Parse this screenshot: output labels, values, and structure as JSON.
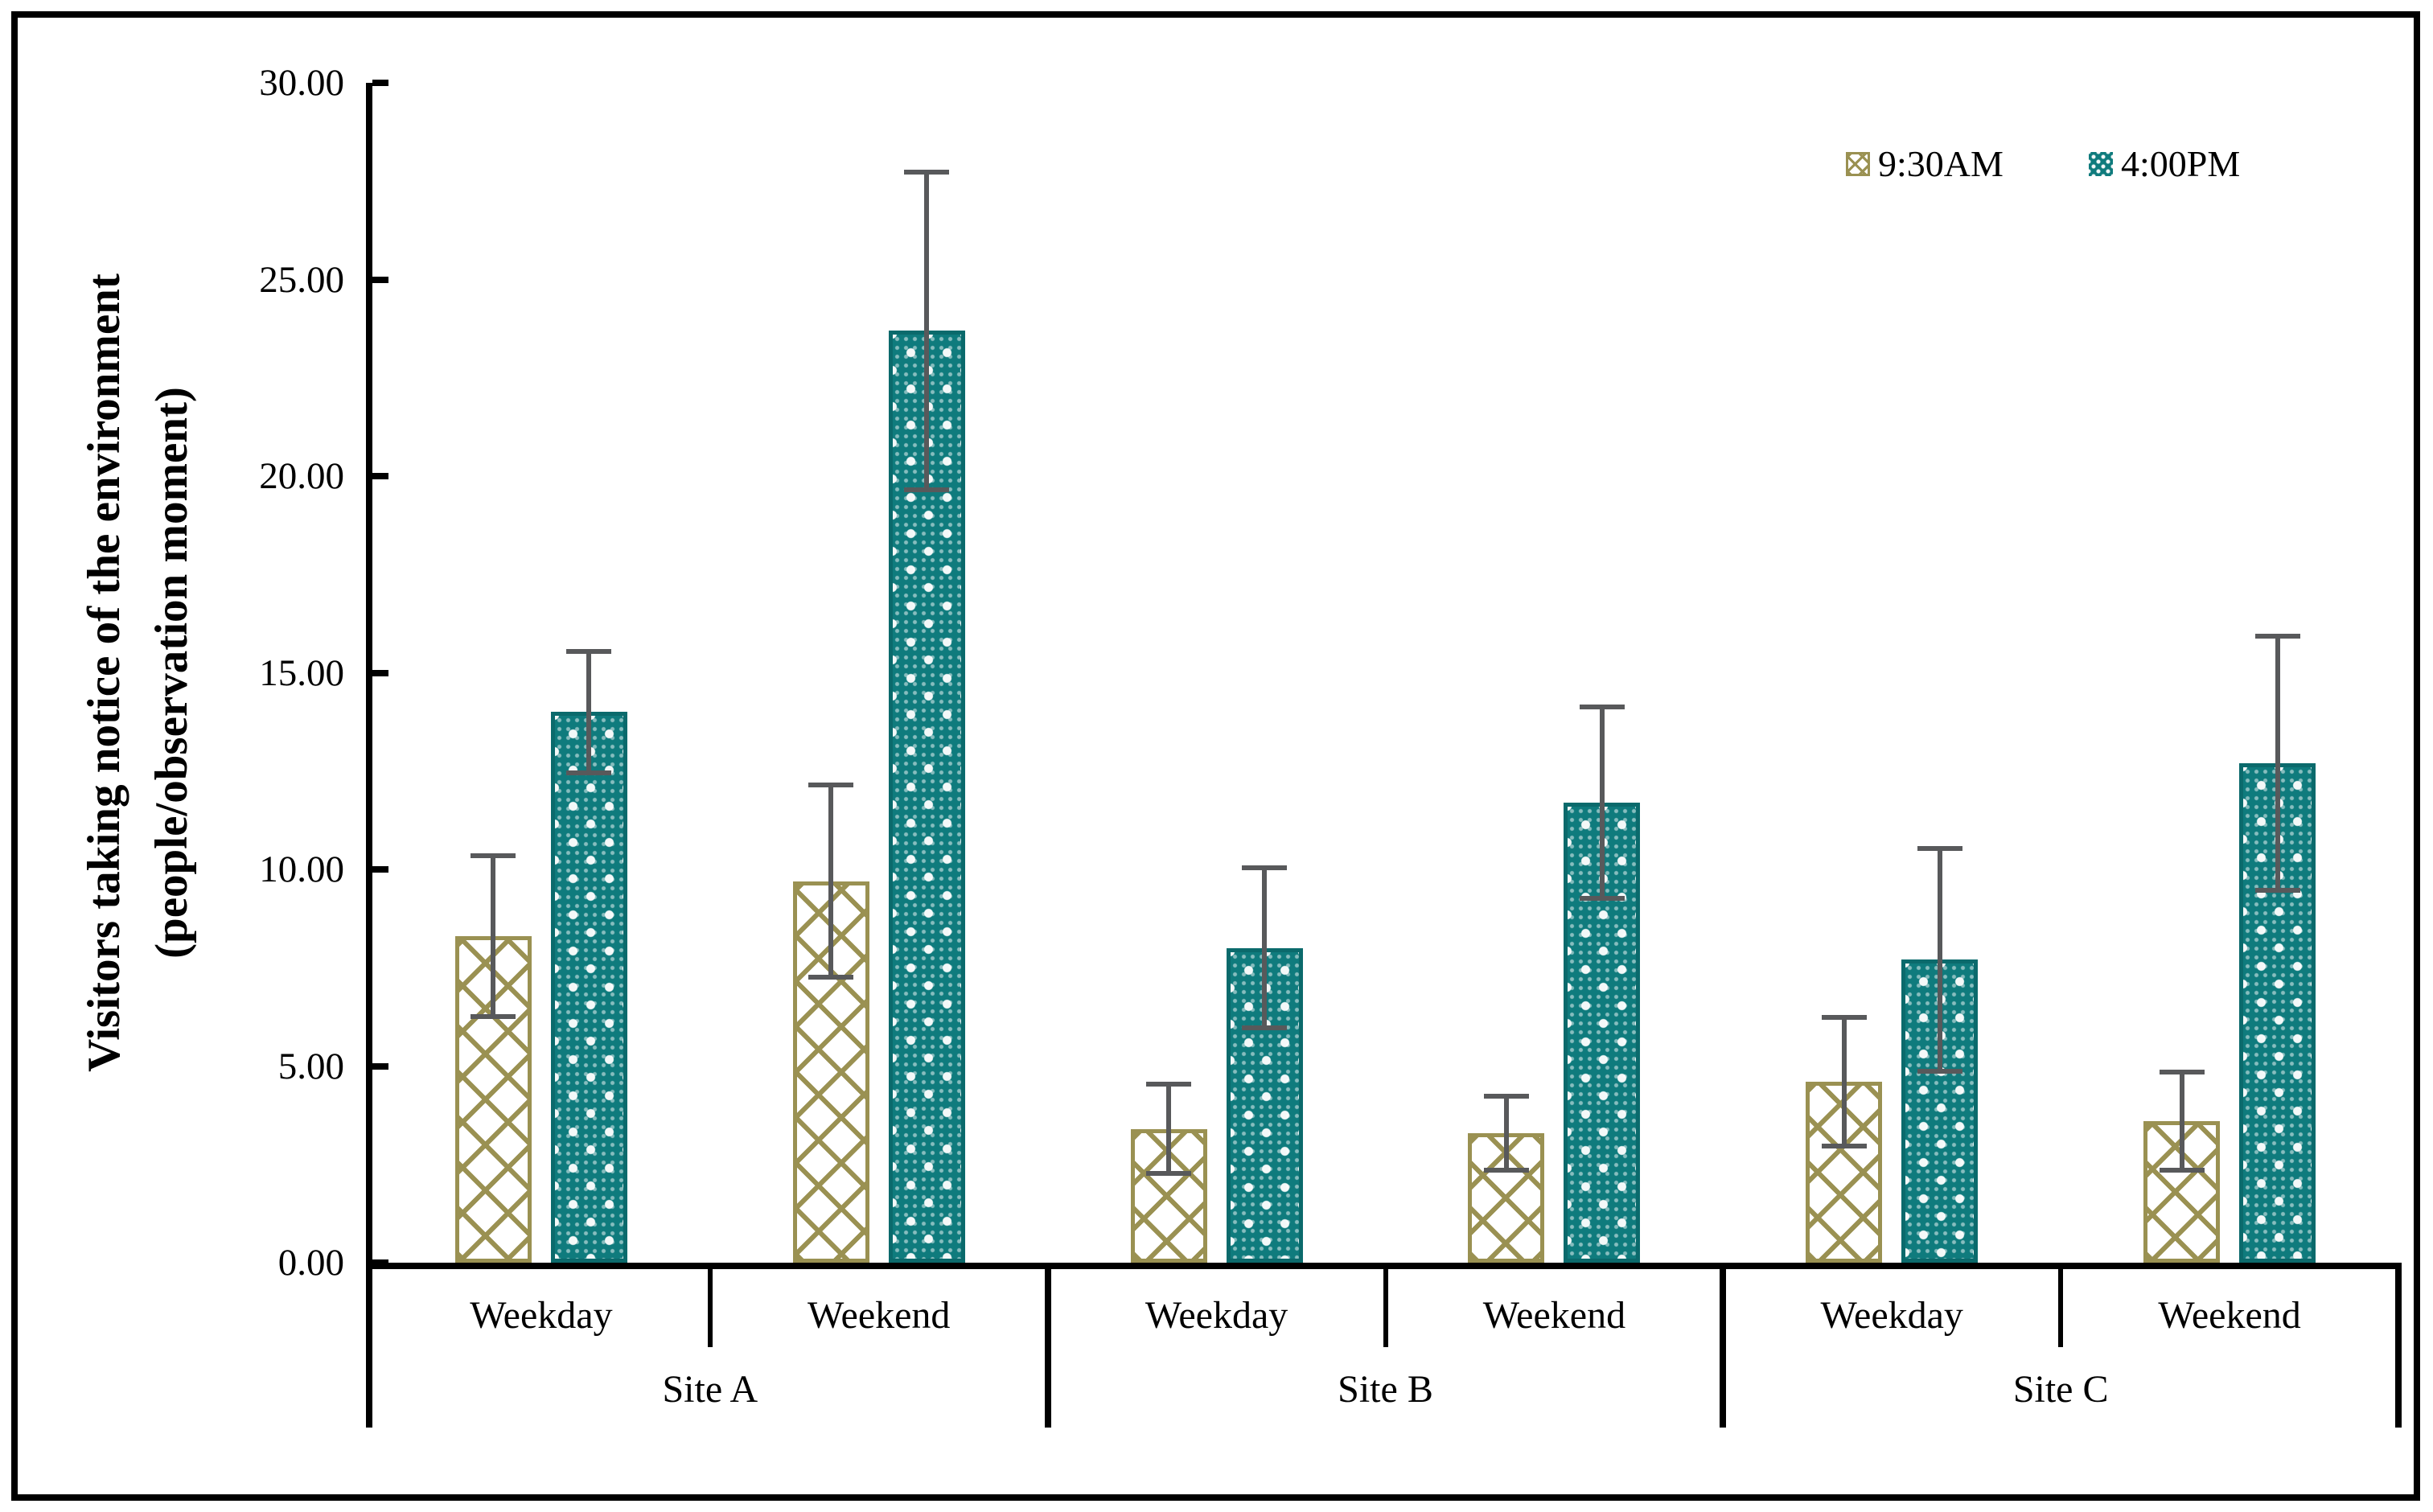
{
  "chart_data": {
    "type": "bar",
    "title": "",
    "ylabel_lines": [
      "Visitors taking notice of the environment",
      "(people/observation moment)"
    ],
    "ylim": [
      0,
      30
    ],
    "y_tick_values": [
      0,
      5,
      10,
      15,
      20,
      25,
      30
    ],
    "y_tick_labels": [
      "0.00",
      "5.00",
      "10.00",
      "15.00",
      "20.00",
      "25.00",
      "30.00"
    ],
    "grid": false,
    "legend_position": "top-right",
    "sites": [
      "Site A",
      "Site B",
      "Site C"
    ],
    "categories_per_site": [
      "Weekday",
      "Weekend"
    ],
    "x_categories_flat": [
      "Site A Weekday",
      "Site A Weekend",
      "Site B Weekday",
      "Site B Weekend",
      "Site C Weekday",
      "Site C Weekend"
    ],
    "series": [
      {
        "name": "9:30AM",
        "swatch_color": "#9a9152",
        "pattern": "white fill with khaki diagonal crosshatch",
        "values": [
          8.3,
          9.7,
          3.4,
          3.3,
          4.6,
          3.6
        ],
        "error_bars": [
          2.1,
          2.5,
          1.2,
          1.0,
          1.7,
          1.3
        ]
      },
      {
        "name": "4:00PM",
        "swatch_color": "#0f7b7d",
        "pattern": "teal fill with white dot lattice",
        "values": [
          14.0,
          23.7,
          8.0,
          11.7,
          7.7,
          12.7
        ],
        "error_bars": [
          1.6,
          4.1,
          2.1,
          2.5,
          2.9,
          3.3
        ]
      }
    ],
    "error_bar_color": "#58595b",
    "axis_color": "#000000"
  }
}
